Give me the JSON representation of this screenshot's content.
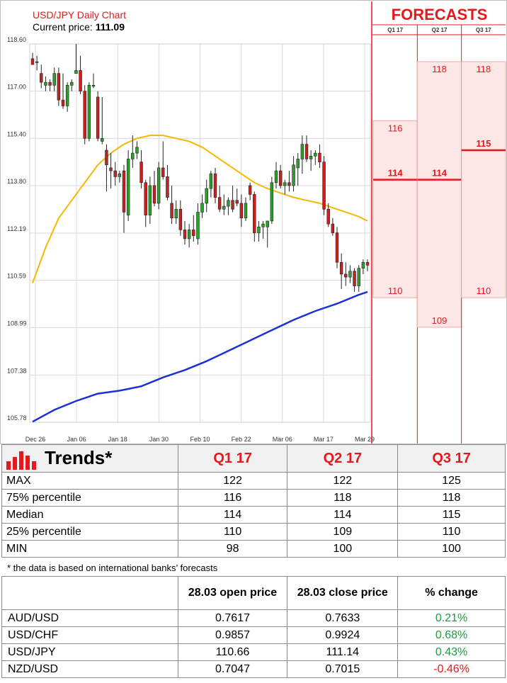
{
  "chart_data": {
    "type": "candlestick",
    "title": "USD/JPY Daily Chart",
    "current_price_label": "Current price:",
    "current_price": "111.09",
    "y_ticks": [
      "118.60",
      "117.00",
      "115.40",
      "113.80",
      "112.19",
      "110.59",
      "108.99",
      "107.38",
      "105.78"
    ],
    "ylim": [
      105.78,
      118.6
    ],
    "x_ticks": [
      "Dec 26",
      "Jan 06",
      "Jan 18",
      "Jan 30",
      "Feb 10",
      "Feb 22",
      "Mar 06",
      "Mar 17",
      "Mar 29"
    ],
    "candles": [
      {
        "o": 118.1,
        "h": 118.3,
        "l": 117.9,
        "c": 117.9
      },
      {
        "o": 118.0,
        "h": 118.2,
        "l": 117.7,
        "c": 118.0
      },
      {
        "o": 117.6,
        "h": 117.9,
        "l": 117.1,
        "c": 117.3
      },
      {
        "o": 117.2,
        "h": 117.5,
        "l": 117.0,
        "c": 117.3
      },
      {
        "o": 117.3,
        "h": 117.4,
        "l": 117.0,
        "c": 117.2
      },
      {
        "o": 117.2,
        "h": 117.8,
        "l": 117.0,
        "c": 117.6
      },
      {
        "o": 117.6,
        "h": 117.8,
        "l": 116.5,
        "c": 116.7
      },
      {
        "o": 116.7,
        "h": 117.6,
        "l": 116.4,
        "c": 116.5
      },
      {
        "o": 116.5,
        "h": 117.3,
        "l": 116.3,
        "c": 117.2
      },
      {
        "o": 117.2,
        "h": 117.4,
        "l": 117.0,
        "c": 117.3
      },
      {
        "o": 117.6,
        "h": 118.6,
        "l": 117.6,
        "c": 117.7
      },
      {
        "o": 117.7,
        "h": 118.2,
        "l": 116.9,
        "c": 117.0
      },
      {
        "o": 117.0,
        "h": 117.2,
        "l": 115.2,
        "c": 115.4
      },
      {
        "o": 115.4,
        "h": 117.3,
        "l": 115.3,
        "c": 117.2
      },
      {
        "o": 117.2,
        "h": 117.6,
        "l": 117.1,
        "c": 117.2
      },
      {
        "o": 116.8,
        "h": 117.0,
        "l": 115.3,
        "c": 115.4
      },
      {
        "o": 115.3,
        "h": 116.8,
        "l": 115.2,
        "c": 115.4
      },
      {
        "o": 115.0,
        "h": 115.2,
        "l": 113.6,
        "c": 114.5
      },
      {
        "o": 114.4,
        "h": 114.9,
        "l": 113.7,
        "c": 114.3
      },
      {
        "o": 114.3,
        "h": 114.6,
        "l": 113.8,
        "c": 114.1
      },
      {
        "o": 114.1,
        "h": 114.3,
        "l": 113.9,
        "c": 114.2
      },
      {
        "o": 114.3,
        "h": 114.5,
        "l": 112.2,
        "c": 112.9
      },
      {
        "o": 112.8,
        "h": 115.0,
        "l": 112.6,
        "c": 114.7
      },
      {
        "o": 114.7,
        "h": 115.5,
        "l": 114.4,
        "c": 114.9
      },
      {
        "o": 114.9,
        "h": 115.3,
        "l": 114.7,
        "c": 115.1
      },
      {
        "o": 114.6,
        "h": 115.0,
        "l": 113.7,
        "c": 113.9
      },
      {
        "o": 113.9,
        "h": 114.0,
        "l": 112.4,
        "c": 112.8
      },
      {
        "o": 112.8,
        "h": 114.1,
        "l": 112.5,
        "c": 113.8
      },
      {
        "o": 113.8,
        "h": 114.3,
        "l": 113.1,
        "c": 113.2
      },
      {
        "o": 113.2,
        "h": 114.6,
        "l": 113.0,
        "c": 114.4
      },
      {
        "o": 114.4,
        "h": 115.3,
        "l": 114.0,
        "c": 114.1
      },
      {
        "o": 114.1,
        "h": 114.5,
        "l": 113.3,
        "c": 113.4
      },
      {
        "o": 113.2,
        "h": 113.8,
        "l": 112.5,
        "c": 112.7
      },
      {
        "o": 112.7,
        "h": 113.3,
        "l": 112.5,
        "c": 113.0
      },
      {
        "o": 113.0,
        "h": 113.3,
        "l": 112.1,
        "c": 112.3
      },
      {
        "o": 112.3,
        "h": 112.6,
        "l": 111.8,
        "c": 112.0
      },
      {
        "o": 112.0,
        "h": 112.5,
        "l": 111.7,
        "c": 112.3
      },
      {
        "o": 112.3,
        "h": 112.8,
        "l": 111.9,
        "c": 112.1
      },
      {
        "o": 112.0,
        "h": 113.2,
        "l": 111.8,
        "c": 112.9
      },
      {
        "o": 112.9,
        "h": 113.5,
        "l": 112.7,
        "c": 113.2
      },
      {
        "o": 113.2,
        "h": 114.0,
        "l": 112.9,
        "c": 113.7
      },
      {
        "o": 113.7,
        "h": 114.3,
        "l": 113.4,
        "c": 114.2
      },
      {
        "o": 114.2,
        "h": 114.4,
        "l": 113.2,
        "c": 113.4
      },
      {
        "o": 113.4,
        "h": 113.8,
        "l": 112.9,
        "c": 113.0
      },
      {
        "o": 113.0,
        "h": 113.5,
        "l": 112.8,
        "c": 113.1
      },
      {
        "o": 113.1,
        "h": 113.4,
        "l": 112.8,
        "c": 113.3
      },
      {
        "o": 113.3,
        "h": 113.8,
        "l": 112.9,
        "c": 113.0
      },
      {
        "o": 113.3,
        "h": 113.7,
        "l": 113.1,
        "c": 113.2
      },
      {
        "o": 113.2,
        "h": 113.5,
        "l": 112.4,
        "c": 112.7
      },
      {
        "o": 112.7,
        "h": 113.4,
        "l": 112.6,
        "c": 113.2
      },
      {
        "o": 113.8,
        "h": 113.9,
        "l": 113.3,
        "c": 113.5
      },
      {
        "o": 113.5,
        "h": 113.6,
        "l": 111.9,
        "c": 112.2
      },
      {
        "o": 112.2,
        "h": 112.6,
        "l": 111.9,
        "c": 112.4
      },
      {
        "o": 112.4,
        "h": 112.6,
        "l": 112.0,
        "c": 112.5
      },
      {
        "o": 112.4,
        "h": 112.5,
        "l": 111.7,
        "c": 112.6
      },
      {
        "o": 112.6,
        "h": 114.1,
        "l": 112.5,
        "c": 113.9
      },
      {
        "o": 113.9,
        "h": 114.6,
        "l": 113.7,
        "c": 114.3
      },
      {
        "o": 114.3,
        "h": 114.5,
        "l": 113.7,
        "c": 113.8
      },
      {
        "o": 113.8,
        "h": 114.0,
        "l": 113.5,
        "c": 113.9
      },
      {
        "o": 113.9,
        "h": 114.3,
        "l": 113.6,
        "c": 113.8
      },
      {
        "o": 113.8,
        "h": 114.8,
        "l": 113.6,
        "c": 114.5
      },
      {
        "o": 114.4,
        "h": 114.9,
        "l": 113.8,
        "c": 114.7
      },
      {
        "o": 114.7,
        "h": 115.5,
        "l": 114.2,
        "c": 115.2
      },
      {
        "o": 115.2,
        "h": 115.5,
        "l": 114.6,
        "c": 114.7
      },
      {
        "o": 114.7,
        "h": 115.0,
        "l": 114.3,
        "c": 114.8
      },
      {
        "o": 114.8,
        "h": 115.0,
        "l": 114.5,
        "c": 114.9
      },
      {
        "o": 114.9,
        "h": 115.2,
        "l": 114.4,
        "c": 114.6
      },
      {
        "o": 114.6,
        "h": 114.8,
        "l": 112.8,
        "c": 113.0
      },
      {
        "o": 113.0,
        "h": 113.2,
        "l": 112.4,
        "c": 112.5
      },
      {
        "o": 112.5,
        "h": 112.7,
        "l": 112.1,
        "c": 112.2
      },
      {
        "o": 112.2,
        "h": 112.4,
        "l": 111.0,
        "c": 111.2
      },
      {
        "o": 111.2,
        "h": 111.5,
        "l": 110.3,
        "c": 110.8
      },
      {
        "o": 110.8,
        "h": 111.2,
        "l": 110.4,
        "c": 110.7
      },
      {
        "o": 110.7,
        "h": 111.1,
        "l": 110.5,
        "c": 110.9
      },
      {
        "o": 110.9,
        "h": 111.0,
        "l": 110.2,
        "c": 110.4
      },
      {
        "o": 110.4,
        "h": 111.1,
        "l": 110.2,
        "c": 111.0
      },
      {
        "o": 111.0,
        "h": 111.3,
        "l": 110.8,
        "c": 111.2
      },
      {
        "o": 111.2,
        "h": 111.3,
        "l": 110.9,
        "c": 111.1
      }
    ],
    "ma_fast": [
      [
        0,
        110.5
      ],
      [
        3,
        111.7
      ],
      [
        6,
        112.7
      ],
      [
        9,
        113.3
      ],
      [
        12,
        113.9
      ],
      [
        15,
        114.5
      ],
      [
        18,
        114.9
      ],
      [
        21,
        115.2
      ],
      [
        24,
        115.4
      ],
      [
        27,
        115.5
      ],
      [
        30,
        115.5
      ],
      [
        33,
        115.4
      ],
      [
        36,
        115.3
      ],
      [
        39,
        115.1
      ],
      [
        42,
        114.8
      ],
      [
        45,
        114.5
      ],
      [
        48,
        114.2
      ],
      [
        51,
        113.9
      ],
      [
        54,
        113.7
      ],
      [
        57,
        113.55
      ],
      [
        60,
        113.4
      ],
      [
        63,
        113.3
      ],
      [
        66,
        113.2
      ],
      [
        69,
        113.05
      ],
      [
        72,
        112.9
      ],
      [
        75,
        112.75
      ],
      [
        77,
        112.6
      ]
    ],
    "ma_slow": [
      [
        0,
        105.8
      ],
      [
        5,
        106.2
      ],
      [
        10,
        106.5
      ],
      [
        15,
        106.75
      ],
      [
        20,
        106.85
      ],
      [
        25,
        107.0
      ],
      [
        30,
        107.3
      ],
      [
        35,
        107.55
      ],
      [
        40,
        107.85
      ],
      [
        45,
        108.2
      ],
      [
        50,
        108.55
      ],
      [
        55,
        108.9
      ],
      [
        60,
        109.25
      ],
      [
        65,
        109.55
      ],
      [
        70,
        109.8
      ],
      [
        75,
        110.1
      ],
      [
        77,
        110.2
      ]
    ],
    "forecasts": {
      "title": "FORECASTS",
      "quarters": [
        "Q1 17",
        "Q2 17",
        "Q3 17"
      ],
      "bands": [
        {
          "p75": 116,
          "median": 114,
          "p25": 110,
          "p75_label": "116",
          "median_label": "114",
          "p25_label": "110"
        },
        {
          "p75": 118,
          "median": 114,
          "p25": 109,
          "p75_label": "118",
          "median_label": "114",
          "p25_label": "109"
        },
        {
          "p75": 118,
          "median": 115,
          "p25": 110,
          "p75_label": "118",
          "median_label": "115",
          "p25_label": "110"
        }
      ]
    },
    "colors": {
      "up": "#2ca02c",
      "down": "#cc1f1f",
      "ma_fast": "#f5b800",
      "ma_slow": "#1f2fd6",
      "forecast_fill": "#fde6e6",
      "forecast_line": "#e8171b"
    }
  },
  "trends": {
    "title": "Trends*",
    "headers": [
      "Q1 17",
      "Q2 17",
      "Q3 17"
    ],
    "rows": [
      {
        "label": "MAX",
        "values": [
          "122",
          "122",
          "125"
        ]
      },
      {
        "label": "75% percentile",
        "values": [
          "116",
          "118",
          "118"
        ]
      },
      {
        "label": "Median",
        "values": [
          "114",
          "114",
          "115"
        ]
      },
      {
        "label": "25% percentile",
        "values": [
          "110",
          "109",
          "110"
        ]
      },
      {
        "label": "MIN",
        "values": [
          "98",
          "100",
          "100"
        ]
      }
    ],
    "note": "* the data is based on international banks’ forecasts"
  },
  "fx": {
    "headers": [
      "28.03 open price",
      "28.03 close price",
      "% change"
    ],
    "rows": [
      {
        "pair": "AUD/USD",
        "open": "0.7617",
        "close": "0.7633",
        "change": "0.21%",
        "positive": true
      },
      {
        "pair": "USD/CHF",
        "open": "0.9857",
        "close": "0.9924",
        "change": "0.68%",
        "positive": true
      },
      {
        "pair": "USD/JPY",
        "open": "110.66",
        "close": "111.14",
        "change": "0.43%",
        "positive": true
      },
      {
        "pair": "NZD/USD",
        "open": "0.7047",
        "close": "0.7015",
        "change": "-0.46%",
        "positive": false
      }
    ]
  }
}
